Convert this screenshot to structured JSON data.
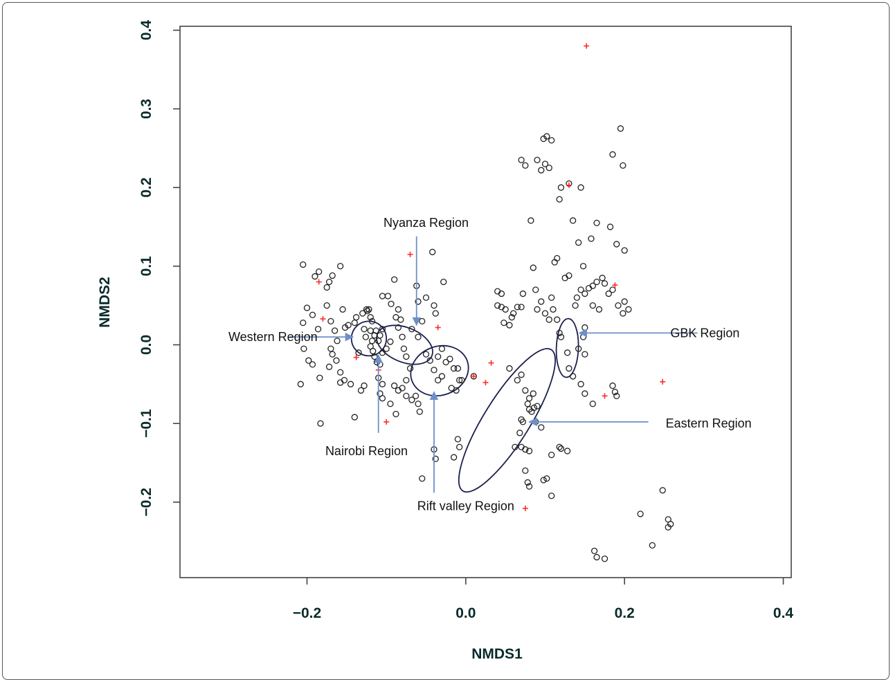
{
  "chart_data": {
    "type": "scatter",
    "title": "",
    "xlabel": "NMDS1",
    "ylabel": "NMDS2",
    "xlim": [
      -0.36,
      0.41
    ],
    "ylim": [
      -0.296,
      0.405
    ],
    "x_ticks": [
      -0.2,
      0.0,
      0.2,
      0.4
    ],
    "x_tick_labels": [
      "−0.2",
      "0.0",
      "0.2",
      "0.4"
    ],
    "y_ticks": [
      -0.2,
      -0.1,
      0.0,
      0.1,
      0.2,
      0.3,
      0.4
    ],
    "y_tick_labels": [
      "−0.2",
      "−0.1",
      "0.0",
      "0.1",
      "0.2",
      "0.3",
      "0.4"
    ],
    "grid": false,
    "colors": {
      "points": "#222222",
      "crosses": "#ff2a2a",
      "ellipses": "#1a1f4d",
      "arrows": "#6e8fc8"
    },
    "series": [
      {
        "marker": "open-circle",
        "points": [
          [
            -0.205,
            0.102
          ],
          [
            -0.19,
            0.087
          ],
          [
            -0.185,
            0.093
          ],
          [
            -0.175,
            0.073
          ],
          [
            -0.172,
            0.08
          ],
          [
            -0.168,
            0.088
          ],
          [
            -0.158,
            0.1
          ],
          [
            -0.2,
            0.047
          ],
          [
            -0.193,
            0.038
          ],
          [
            -0.186,
            0.02
          ],
          [
            -0.205,
            0.028
          ],
          [
            -0.204,
            -0.005
          ],
          [
            -0.198,
            -0.02
          ],
          [
            -0.193,
            -0.025
          ],
          [
            -0.184,
            -0.042
          ],
          [
            -0.208,
            -0.05
          ],
          [
            -0.183,
            -0.1
          ],
          [
            -0.175,
            0.05
          ],
          [
            -0.17,
            0.03
          ],
          [
            -0.165,
            0.018
          ],
          [
            -0.162,
            0.005
          ],
          [
            -0.155,
            0.045
          ],
          [
            -0.152,
            0.022
          ],
          [
            -0.148,
            0.025
          ],
          [
            -0.17,
            -0.005
          ],
          [
            -0.168,
            -0.012
          ],
          [
            -0.163,
            -0.02
          ],
          [
            -0.172,
            -0.028
          ],
          [
            -0.158,
            -0.035
          ],
          [
            -0.153,
            -0.045
          ],
          [
            -0.145,
            -0.05
          ],
          [
            -0.158,
            -0.048
          ],
          [
            -0.14,
            0.028
          ],
          [
            -0.138,
            0.035
          ],
          [
            -0.135,
            -0.01
          ],
          [
            -0.13,
            0.04
          ],
          [
            -0.128,
            0.02
          ],
          [
            -0.126,
            0.01
          ],
          [
            -0.125,
            0.045
          ],
          [
            -0.124,
            0.043
          ],
          [
            -0.122,
            0.045
          ],
          [
            -0.12,
            0.035
          ],
          [
            -0.118,
            0.03
          ],
          [
            -0.12,
            0.018
          ],
          [
            -0.118,
            0.005
          ],
          [
            -0.115,
            0.012
          ],
          [
            -0.113,
            0.018
          ],
          [
            -0.11,
            0.005
          ],
          [
            -0.108,
            0.012
          ],
          [
            -0.105,
            0.02
          ],
          [
            -0.12,
            -0.002
          ],
          [
            -0.117,
            -0.008
          ],
          [
            -0.115,
            -0.015
          ],
          [
            -0.112,
            -0.022
          ],
          [
            -0.108,
            -0.025
          ],
          [
            -0.105,
            -0.01
          ],
          [
            -0.1,
            -0.005
          ],
          [
            -0.095,
            0.004
          ],
          [
            -0.11,
            -0.042
          ],
          [
            -0.105,
            -0.05
          ],
          [
            -0.108,
            -0.062
          ],
          [
            -0.105,
            -0.068
          ],
          [
            -0.098,
            0.062
          ],
          [
            -0.094,
            0.052
          ],
          [
            -0.09,
            0.083
          ],
          [
            -0.088,
            0.035
          ],
          [
            -0.085,
            0.045
          ],
          [
            -0.085,
            0.022
          ],
          [
            -0.082,
            0.032
          ],
          [
            -0.08,
            0.01
          ],
          [
            -0.078,
            -0.005
          ],
          [
            -0.075,
            -0.015
          ],
          [
            -0.07,
            -0.03
          ],
          [
            -0.09,
            -0.052
          ],
          [
            -0.085,
            -0.058
          ],
          [
            -0.08,
            -0.055
          ],
          [
            -0.075,
            -0.045
          ],
          [
            -0.075,
            -0.065
          ],
          [
            -0.068,
            -0.07
          ],
          [
            -0.063,
            -0.065
          ],
          [
            -0.06,
            -0.075
          ],
          [
            -0.058,
            -0.085
          ],
          [
            -0.088,
            -0.088
          ],
          [
            -0.095,
            -0.075
          ],
          [
            -0.128,
            -0.052
          ],
          [
            -0.132,
            -0.058
          ],
          [
            -0.14,
            -0.092
          ],
          [
            -0.105,
            0.062
          ],
          [
            -0.068,
            0.02
          ],
          [
            -0.06,
            0.01
          ],
          [
            -0.062,
            0.075
          ],
          [
            -0.06,
            0.055
          ],
          [
            -0.055,
            0.03
          ],
          [
            -0.05,
            0.06
          ],
          [
            -0.042,
            0.118
          ],
          [
            -0.04,
            0.05
          ],
          [
            -0.038,
            0.04
          ],
          [
            -0.028,
            0.08
          ],
          [
            -0.05,
            -0.012
          ],
          [
            -0.045,
            -0.02
          ],
          [
            -0.04,
            -0.032
          ],
          [
            -0.035,
            -0.045
          ],
          [
            -0.03,
            -0.04
          ],
          [
            -0.025,
            -0.022
          ],
          [
            -0.02,
            -0.018
          ],
          [
            -0.015,
            -0.03
          ],
          [
            -0.01,
            -0.03
          ],
          [
            -0.008,
            -0.045
          ],
          [
            -0.005,
            -0.045
          ],
          [
            -0.018,
            -0.055
          ],
          [
            -0.012,
            -0.058
          ],
          [
            -0.035,
            -0.015
          ],
          [
            -0.03,
            -0.005
          ],
          [
            -0.04,
            -0.133
          ],
          [
            -0.038,
            -0.145
          ],
          [
            -0.055,
            -0.17
          ],
          [
            -0.015,
            -0.143
          ],
          [
            -0.008,
            -0.13
          ],
          [
            -0.01,
            -0.12
          ],
          [
            0.01,
            -0.04
          ],
          [
            0.04,
            0.068
          ],
          [
            0.045,
            0.065
          ],
          [
            0.04,
            0.05
          ],
          [
            0.045,
            0.048
          ],
          [
            0.05,
            0.045
          ],
          [
            0.058,
            0.035
          ],
          [
            0.048,
            0.028
          ],
          [
            0.055,
            0.025
          ],
          [
            0.06,
            0.04
          ],
          [
            0.065,
            0.048
          ],
          [
            0.07,
            0.048
          ],
          [
            0.072,
            0.065
          ],
          [
            0.055,
            -0.03
          ],
          [
            0.065,
            -0.045
          ],
          [
            0.07,
            -0.038
          ],
          [
            0.075,
            -0.058
          ],
          [
            0.08,
            -0.068
          ],
          [
            0.085,
            -0.062
          ],
          [
            0.078,
            -0.075
          ],
          [
            0.08,
            -0.082
          ],
          [
            0.083,
            -0.085
          ],
          [
            0.086,
            -0.08
          ],
          [
            0.09,
            -0.078
          ],
          [
            0.07,
            -0.095
          ],
          [
            0.072,
            -0.098
          ],
          [
            0.068,
            -0.112
          ],
          [
            0.062,
            -0.13
          ],
          [
            0.07,
            -0.13
          ],
          [
            0.075,
            -0.133
          ],
          [
            0.08,
            -0.135
          ],
          [
            0.075,
            -0.16
          ],
          [
            0.078,
            -0.175
          ],
          [
            0.08,
            -0.18
          ],
          [
            0.098,
            -0.172
          ],
          [
            0.102,
            -0.17
          ],
          [
            0.108,
            -0.192
          ],
          [
            0.118,
            -0.13
          ],
          [
            0.12,
            -0.132
          ],
          [
            0.128,
            -0.135
          ],
          [
            0.108,
            -0.14
          ],
          [
            0.095,
            -0.105
          ],
          [
            0.088,
            -0.098
          ],
          [
            0.09,
            0.045
          ],
          [
            0.095,
            0.055
          ],
          [
            0.1,
            0.04
          ],
          [
            0.105,
            0.032
          ],
          [
            0.108,
            0.06
          ],
          [
            0.11,
            0.045
          ],
          [
            0.115,
            0.032
          ],
          [
            0.118,
            0.015
          ],
          [
            0.12,
            0.01
          ],
          [
            0.088,
            0.07
          ],
          [
            0.085,
            0.098
          ],
          [
            0.082,
            0.158
          ],
          [
            0.07,
            0.235
          ],
          [
            0.075,
            0.228
          ],
          [
            0.09,
            0.235
          ],
          [
            0.095,
            0.222
          ],
          [
            0.098,
            0.262
          ],
          [
            0.102,
            0.265
          ],
          [
            0.108,
            0.26
          ],
          [
            0.1,
            0.23
          ],
          [
            0.105,
            0.225
          ],
          [
            0.118,
            0.185
          ],
          [
            0.12,
            0.2
          ],
          [
            0.13,
            0.205
          ],
          [
            0.145,
            0.2
          ],
          [
            0.135,
            0.158
          ],
          [
            0.142,
            0.13
          ],
          [
            0.148,
            0.1
          ],
          [
            0.13,
            0.088
          ],
          [
            0.125,
            0.085
          ],
          [
            0.115,
            0.11
          ],
          [
            0.112,
            0.105
          ],
          [
            0.138,
            0.05
          ],
          [
            0.14,
            0.06
          ],
          [
            0.145,
            0.07
          ],
          [
            0.15,
            0.065
          ],
          [
            0.155,
            0.072
          ],
          [
            0.16,
            0.075
          ],
          [
            0.165,
            0.08
          ],
          [
            0.172,
            0.085
          ],
          [
            0.175,
            0.078
          ],
          [
            0.16,
            0.05
          ],
          [
            0.168,
            0.045
          ],
          [
            0.18,
            0.065
          ],
          [
            0.185,
            0.07
          ],
          [
            0.192,
            0.05
          ],
          [
            0.198,
            0.04
          ],
          [
            0.2,
            0.055
          ],
          [
            0.205,
            0.045
          ],
          [
            0.158,
            0.135
          ],
          [
            0.165,
            0.155
          ],
          [
            0.182,
            0.15
          ],
          [
            0.19,
            0.128
          ],
          [
            0.2,
            0.12
          ],
          [
            0.185,
            0.242
          ],
          [
            0.195,
            0.275
          ],
          [
            0.198,
            0.228
          ],
          [
            0.128,
            -0.01
          ],
          [
            0.13,
            -0.03
          ],
          [
            0.135,
            -0.04
          ],
          [
            0.145,
            -0.05
          ],
          [
            0.15,
            -0.062
          ],
          [
            0.16,
            -0.075
          ],
          [
            0.185,
            -0.052
          ],
          [
            0.188,
            -0.06
          ],
          [
            0.19,
            -0.065
          ],
          [
            0.15,
            0.022
          ],
          [
            0.148,
            0.01
          ],
          [
            0.142,
            -0.005
          ],
          [
            0.15,
            -0.012
          ],
          [
            0.22,
            -0.215
          ],
          [
            0.235,
            -0.255
          ],
          [
            0.248,
            -0.185
          ],
          [
            0.255,
            -0.222
          ],
          [
            0.258,
            -0.228
          ],
          [
            0.255,
            -0.232
          ],
          [
            0.162,
            -0.262
          ],
          [
            0.165,
            -0.27
          ],
          [
            0.175,
            -0.272
          ]
        ]
      },
      {
        "marker": "red-cross",
        "points": [
          [
            0.152,
            0.38
          ],
          [
            -0.185,
            0.08
          ],
          [
            -0.18,
            0.033
          ],
          [
            -0.138,
            -0.016
          ],
          [
            -0.11,
            -0.032
          ],
          [
            -0.1,
            -0.098
          ],
          [
            -0.07,
            0.115
          ],
          [
            -0.035,
            0.022
          ],
          [
            0.01,
            -0.04
          ],
          [
            0.025,
            -0.048
          ],
          [
            0.032,
            -0.023
          ],
          [
            0.13,
            0.203
          ],
          [
            0.188,
            0.076
          ],
          [
            0.175,
            -0.065
          ],
          [
            0.248,
            -0.047
          ],
          [
            0.075,
            -0.208
          ]
        ]
      }
    ],
    "ellipses": [
      {
        "name": "Western Region",
        "cx": -0.122,
        "cy": 0.008,
        "rx": 0.022,
        "ry": 0.022,
        "angle": 0
      },
      {
        "name": "Nyanza Region",
        "cx": -0.077,
        "cy": 0.0,
        "rx": 0.037,
        "ry": 0.022,
        "angle": 22
      },
      {
        "name": "Rift valley Region",
        "cx": -0.033,
        "cy": -0.033,
        "rx": 0.037,
        "ry": 0.031,
        "angle": -20
      },
      {
        "name": "Eastern Region",
        "cx": 0.052,
        "cy": -0.096,
        "rx": 0.105,
        "ry": 0.029,
        "angle": -58
      },
      {
        "name": "GBK Region",
        "cx": 0.128,
        "cy": -0.004,
        "rx": 0.037,
        "ry": 0.014,
        "angle": -88
      }
    ],
    "annotations": [
      {
        "text": "Western Region",
        "text_x": -0.299,
        "text_y": 0.01,
        "text_anchor": "start",
        "arrow_from": [
          -0.222,
          0.01
        ],
        "arrow_to": [
          -0.142,
          0.01
        ]
      },
      {
        "text": "Nyanza Region",
        "text_x": -0.05,
        "text_y": 0.155,
        "text_anchor": "middle",
        "arrow_from": [
          -0.062,
          0.138
        ],
        "arrow_to": [
          -0.062,
          0.025
        ]
      },
      {
        "text": "GBK Region",
        "text_x": 0.345,
        "text_y": 0.015,
        "text_anchor": "end",
        "arrow_from": [
          0.292,
          0.015
        ],
        "arrow_to": [
          0.143,
          0.015
        ]
      },
      {
        "text": "Eastern Region",
        "text_x": 0.36,
        "text_y": -0.1,
        "text_anchor": "end",
        "arrow_from": [
          0.23,
          -0.098
        ],
        "arrow_to": [
          0.08,
          -0.098
        ]
      },
      {
        "text": "Nairobi Region",
        "text_x": -0.125,
        "text_y": -0.135,
        "text_anchor": "middle",
        "arrow_from": [
          -0.11,
          -0.112
        ],
        "arrow_to": [
          -0.11,
          -0.013
        ]
      },
      {
        "text": "Rift valley Region",
        "text_x": 0.0,
        "text_y": -0.205,
        "text_anchor": "middle",
        "arrow_from": [
          -0.04,
          -0.188
        ],
        "arrow_to": [
          -0.04,
          -0.06
        ]
      }
    ]
  }
}
